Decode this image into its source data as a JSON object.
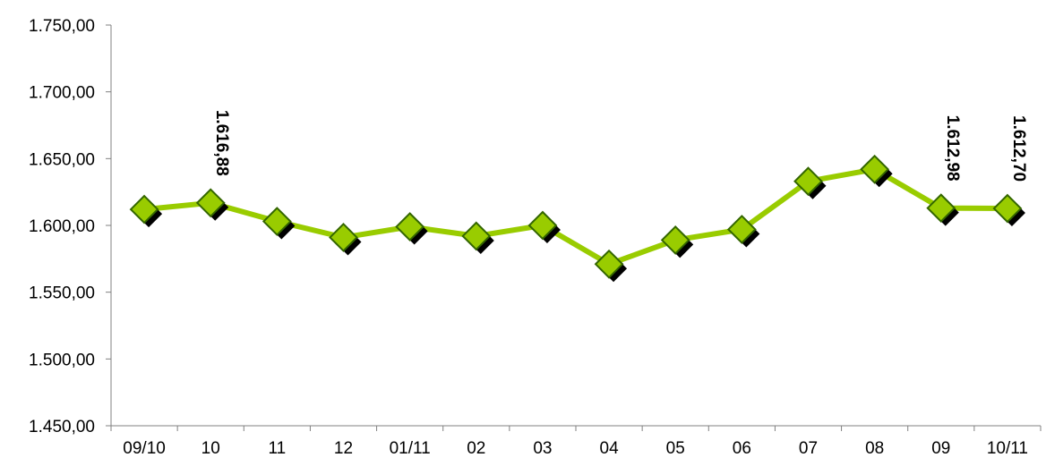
{
  "chart_data": {
    "type": "line",
    "title": "",
    "xlabel": "",
    "ylabel": "",
    "categories": [
      "09/10",
      "10",
      "11",
      "12",
      "01/11",
      "02",
      "03",
      "04",
      "05",
      "06",
      "07",
      "08",
      "09",
      "10/11"
    ],
    "series": [
      {
        "values": [
          1612,
          1616.88,
          1603,
          1591,
          1599,
          1592,
          1600,
          1571,
          1589,
          1597,
          1633,
          1642,
          1612.98,
          1612.7
        ],
        "line_color": "#99cc00",
        "marker": "diamond",
        "marker_fill": "#99cc00",
        "marker_edge": "#336600",
        "marker_shadow": "#000000"
      }
    ],
    "ylim": [
      1450,
      1750
    ],
    "y_ticks": [
      "1.450,00",
      "1.500,00",
      "1.550,00",
      "1.600,00",
      "1.650,00",
      "1.700,00",
      "1.750,00"
    ],
    "y_tick_values": [
      1450,
      1500,
      1550,
      1600,
      1650,
      1700,
      1750
    ],
    "data_labels": [
      {
        "index": 1,
        "text": "1.616,88"
      },
      {
        "index": 12,
        "text": "1.612,98"
      },
      {
        "index": 13,
        "text": "1.612,70"
      }
    ],
    "grid": false,
    "legend": "none"
  }
}
